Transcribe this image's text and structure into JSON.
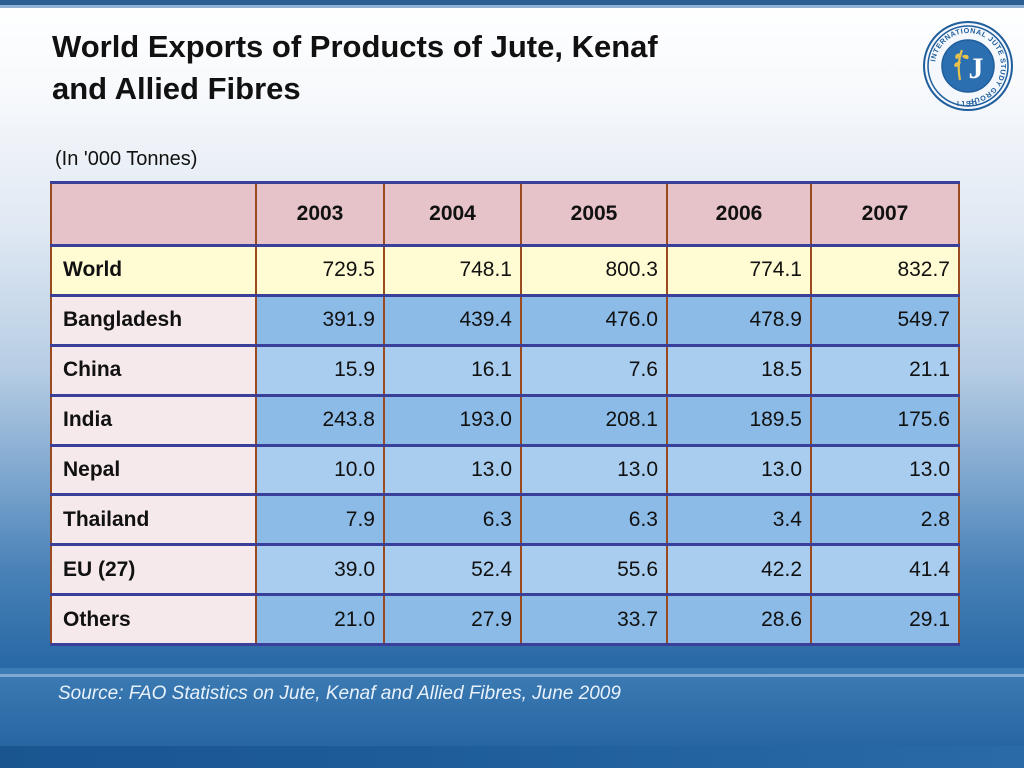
{
  "title_line1": "World Exports of Products of Jute, Kenaf",
  "title_line2": "and Allied Fibres",
  "unit": "(In '000 Tonnes)",
  "logo": {
    "ring_text": "INTERNATIONAL JUTE STUDY GROUP",
    "initials": "IJSG",
    "mark": "J"
  },
  "table": {
    "header_corner": "",
    "years": [
      "2003",
      "2004",
      "2005",
      "2006",
      "2007"
    ],
    "rows": [
      {
        "name": "World",
        "values": [
          "729.5",
          "748.1",
          "800.3",
          "774.1",
          "832.7"
        ]
      },
      {
        "name": "Bangladesh",
        "values": [
          "391.9",
          "439.4",
          "476.0",
          "478.9",
          "549.7"
        ]
      },
      {
        "name": "China",
        "values": [
          "15.9",
          "16.1",
          "7.6",
          "18.5",
          "21.1"
        ]
      },
      {
        "name": "India",
        "values": [
          "243.8",
          "193.0",
          "208.1",
          "189.5",
          "175.6"
        ]
      },
      {
        "name": "Nepal",
        "values": [
          "10.0",
          "13.0",
          "13.0",
          "13.0",
          "13.0"
        ]
      },
      {
        "name": "Thailand",
        "values": [
          "7.9",
          "6.3",
          "6.3",
          "3.4",
          "2.8"
        ]
      },
      {
        "name": "EU (27)",
        "values": [
          "39.0",
          "52.4",
          "55.6",
          "42.2",
          "41.4"
        ]
      },
      {
        "name": "Others",
        "values": [
          "21.0",
          "27.9",
          "33.7",
          "28.6",
          "29.1"
        ]
      }
    ]
  },
  "source": "Source: FAO Statistics on Jute, Kenaf and Allied Fibres, June 2009",
  "colors": {
    "header_bg": "#e6c3c8",
    "world_row_bg": "#fffbd2",
    "name_col_bg": "#f6e9ec",
    "value_bg": "#8bbbe6",
    "value_bg_alt": "#a9cdef",
    "grid_horizontal": "#3a3f9a",
    "grid_vertical": "#9a4a1e"
  }
}
